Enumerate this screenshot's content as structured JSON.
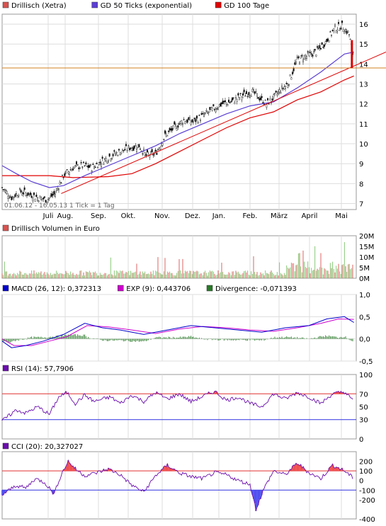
{
  "chart_data": [
    {
      "type": "candlestick",
      "legend": [
        {
          "label": "Drillisch (Xetra)",
          "color": "#d9534f"
        },
        {
          "label": "GD 50 Ticks (exponential)",
          "color": "#5b3fd4"
        },
        {
          "label": "GD 100 Tage",
          "color": "#e00000"
        }
      ],
      "note": "01.06.12 - 16.05.13   1 Tick = 1 Tag",
      "yticks": [
        7,
        8,
        9,
        10,
        11,
        12,
        13,
        14,
        15,
        16
      ],
      "ylim": [
        6.7,
        16.5
      ],
      "xlabels": [
        "Juli",
        "Aug.",
        "Sep.",
        "Okt.",
        "Nov.",
        "Dez.",
        "Jan.",
        "Feb.",
        "März",
        "April",
        "Mai"
      ],
      "price_path": [
        [
          0,
          7.8
        ],
        [
          8,
          7.3
        ],
        [
          15,
          7.6
        ],
        [
          22,
          7.5
        ],
        [
          30,
          7.3
        ],
        [
          38,
          7.2
        ],
        [
          45,
          7.5
        ],
        [
          52,
          8.4
        ],
        [
          60,
          8.8
        ],
        [
          68,
          8.9
        ],
        [
          76,
          8.8
        ],
        [
          84,
          9.1
        ],
        [
          92,
          9.4
        ],
        [
          100,
          9.6
        ],
        [
          108,
          9.8
        ],
        [
          116,
          9.9
        ],
        [
          122,
          9.4
        ],
        [
          130,
          9.5
        ],
        [
          138,
          10.4
        ],
        [
          146,
          10.8
        ],
        [
          154,
          11.2
        ],
        [
          162,
          11.1
        ],
        [
          170,
          11.4
        ],
        [
          178,
          11.7
        ],
        [
          186,
          12.0
        ],
        [
          194,
          12.1
        ],
        [
          200,
          12.3
        ],
        [
          206,
          12.5
        ],
        [
          212,
          12.6
        ],
        [
          218,
          12.3
        ],
        [
          224,
          12.0
        ],
        [
          230,
          12.3
        ],
        [
          236,
          12.7
        ],
        [
          242,
          13.0
        ],
        [
          250,
          14.2
        ],
        [
          258,
          14.4
        ],
        [
          266,
          14.6
        ],
        [
          274,
          15.1
        ],
        [
          282,
          15.8
        ],
        [
          288,
          15.9
        ],
        [
          294,
          15.5
        ],
        [
          298,
          14.2
        ]
      ],
      "ema50_path": [
        [
          0,
          8.9
        ],
        [
          12,
          8.5
        ],
        [
          25,
          8.1
        ],
        [
          40,
          7.8
        ],
        [
          52,
          7.9
        ],
        [
          70,
          8.4
        ],
        [
          90,
          8.9
        ],
        [
          110,
          9.4
        ],
        [
          130,
          9.9
        ],
        [
          150,
          10.5
        ],
        [
          170,
          11.0
        ],
        [
          190,
          11.5
        ],
        [
          210,
          11.9
        ],
        [
          230,
          12.1
        ],
        [
          250,
          12.8
        ],
        [
          270,
          13.6
        ],
        [
          290,
          14.5
        ],
        [
          298,
          14.6
        ]
      ],
      "sma100_path": [
        [
          0,
          8.4
        ],
        [
          40,
          8.4
        ],
        [
          60,
          8.3
        ],
        [
          90,
          8.35
        ],
        [
          110,
          8.5
        ],
        [
          130,
          9.0
        ],
        [
          150,
          9.6
        ],
        [
          170,
          10.2
        ],
        [
          190,
          10.8
        ],
        [
          210,
          11.3
        ],
        [
          230,
          11.6
        ],
        [
          250,
          12.2
        ],
        [
          270,
          12.6
        ],
        [
          290,
          13.2
        ],
        [
          298,
          13.4
        ]
      ],
      "current_level": 13.8,
      "trendline": [
        [
          50,
          7.5
        ],
        [
          320,
          14.6
        ]
      ]
    },
    {
      "type": "bar",
      "legend": [
        {
          "label": "Drillisch Volumen in Euro",
          "color": "#d9534f"
        }
      ],
      "yticks": [
        "20M",
        "15M",
        "10M",
        "5M",
        "0M"
      ],
      "ylim": [
        0,
        20
      ]
    },
    {
      "type": "line",
      "legend": [
        {
          "label": "MACD (26, 12): 0,372313",
          "color": "#0000cc"
        },
        {
          "label": "EXP (9): 0,443706",
          "color": "#cc00cc"
        },
        {
          "label": "Divergence: -0,071393",
          "color": "#2a7a2a"
        }
      ],
      "yticks": [
        "1,0",
        "0,5",
        "0,0",
        "-0,5"
      ],
      "ylim": [
        -0.5,
        1.0
      ],
      "macd_path": [
        [
          0,
          -0.05
        ],
        [
          8,
          -0.2
        ],
        [
          20,
          -0.15
        ],
        [
          35,
          -0.05
        ],
        [
          52,
          0.1
        ],
        [
          70,
          0.35
        ],
        [
          85,
          0.25
        ],
        [
          100,
          0.2
        ],
        [
          120,
          0.1
        ],
        [
          140,
          0.2
        ],
        [
          160,
          0.3
        ],
        [
          180,
          0.25
        ],
        [
          200,
          0.2
        ],
        [
          220,
          0.15
        ],
        [
          240,
          0.25
        ],
        [
          260,
          0.3
        ],
        [
          275,
          0.45
        ],
        [
          290,
          0.5
        ],
        [
          298,
          0.37
        ]
      ],
      "exp_path": [
        [
          0,
          0.0
        ],
        [
          10,
          -0.15
        ],
        [
          25,
          -0.15
        ],
        [
          40,
          -0.05
        ],
        [
          55,
          0.05
        ],
        [
          72,
          0.3
        ],
        [
          90,
          0.27
        ],
        [
          110,
          0.2
        ],
        [
          130,
          0.12
        ],
        [
          150,
          0.22
        ],
        [
          170,
          0.28
        ],
        [
          190,
          0.25
        ],
        [
          210,
          0.2
        ],
        [
          230,
          0.17
        ],
        [
          250,
          0.25
        ],
        [
          270,
          0.35
        ],
        [
          285,
          0.45
        ],
        [
          298,
          0.44
        ]
      ]
    },
    {
      "type": "line",
      "legend": [
        {
          "label": "RSI (14): 57,7906",
          "color": "#6a0dad"
        }
      ],
      "yticks": [
        "100",
        "70",
        "50",
        "30",
        "0"
      ],
      "ylim": [
        0,
        100
      ],
      "levels": [
        70,
        30
      ],
      "rsi_path": [
        [
          0,
          28
        ],
        [
          5,
          35
        ],
        [
          12,
          45
        ],
        [
          20,
          40
        ],
        [
          30,
          50
        ],
        [
          40,
          38
        ],
        [
          48,
          65
        ],
        [
          55,
          72
        ],
        [
          62,
          55
        ],
        [
          70,
          68
        ],
        [
          78,
          58
        ],
        [
          85,
          62
        ],
        [
          92,
          65
        ],
        [
          100,
          55
        ],
        [
          110,
          68
        ],
        [
          120,
          58
        ],
        [
          130,
          72
        ],
        [
          140,
          62
        ],
        [
          150,
          70
        ],
        [
          160,
          58
        ],
        [
          170,
          66
        ],
        [
          180,
          74
        ],
        [
          190,
          60
        ],
        [
          200,
          65
        ],
        [
          210,
          55
        ],
        [
          220,
          50
        ],
        [
          230,
          70
        ],
        [
          240,
          62
        ],
        [
          250,
          72
        ],
        [
          260,
          65
        ],
        [
          270,
          55
        ],
        [
          280,
          70
        ],
        [
          290,
          73
        ],
        [
          298,
          58
        ]
      ]
    },
    {
      "type": "line",
      "legend": [
        {
          "label": "CCI (20): 20,327027",
          "color": "#6a0dad"
        }
      ],
      "yticks": [
        "200",
        "100",
        "0",
        "-100",
        "-200",
        "-400"
      ],
      "ylim": [
        -400,
        300
      ],
      "levels": [
        100,
        -100
      ],
      "cci_path": [
        [
          0,
          -150
        ],
        [
          6,
          -100
        ],
        [
          12,
          -50
        ],
        [
          20,
          -80
        ],
        [
          28,
          20
        ],
        [
          36,
          -20
        ],
        [
          44,
          -140
        ],
        [
          50,
          60
        ],
        [
          56,
          200
        ],
        [
          62,
          120
        ],
        [
          70,
          50
        ],
        [
          80,
          80
        ],
        [
          90,
          120
        ],
        [
          100,
          60
        ],
        [
          110,
          -50
        ],
        [
          120,
          -120
        ],
        [
          130,
          50
        ],
        [
          140,
          160
        ],
        [
          150,
          80
        ],
        [
          160,
          40
        ],
        [
          170,
          20
        ],
        [
          180,
          80
        ],
        [
          190,
          60
        ],
        [
          200,
          0
        ],
        [
          210,
          -40
        ],
        [
          215,
          -300
        ],
        [
          222,
          -80
        ],
        [
          230,
          100
        ],
        [
          240,
          60
        ],
        [
          250,
          180
        ],
        [
          260,
          80
        ],
        [
          270,
          20
        ],
        [
          280,
          160
        ],
        [
          290,
          100
        ],
        [
          298,
          20
        ]
      ]
    }
  ]
}
